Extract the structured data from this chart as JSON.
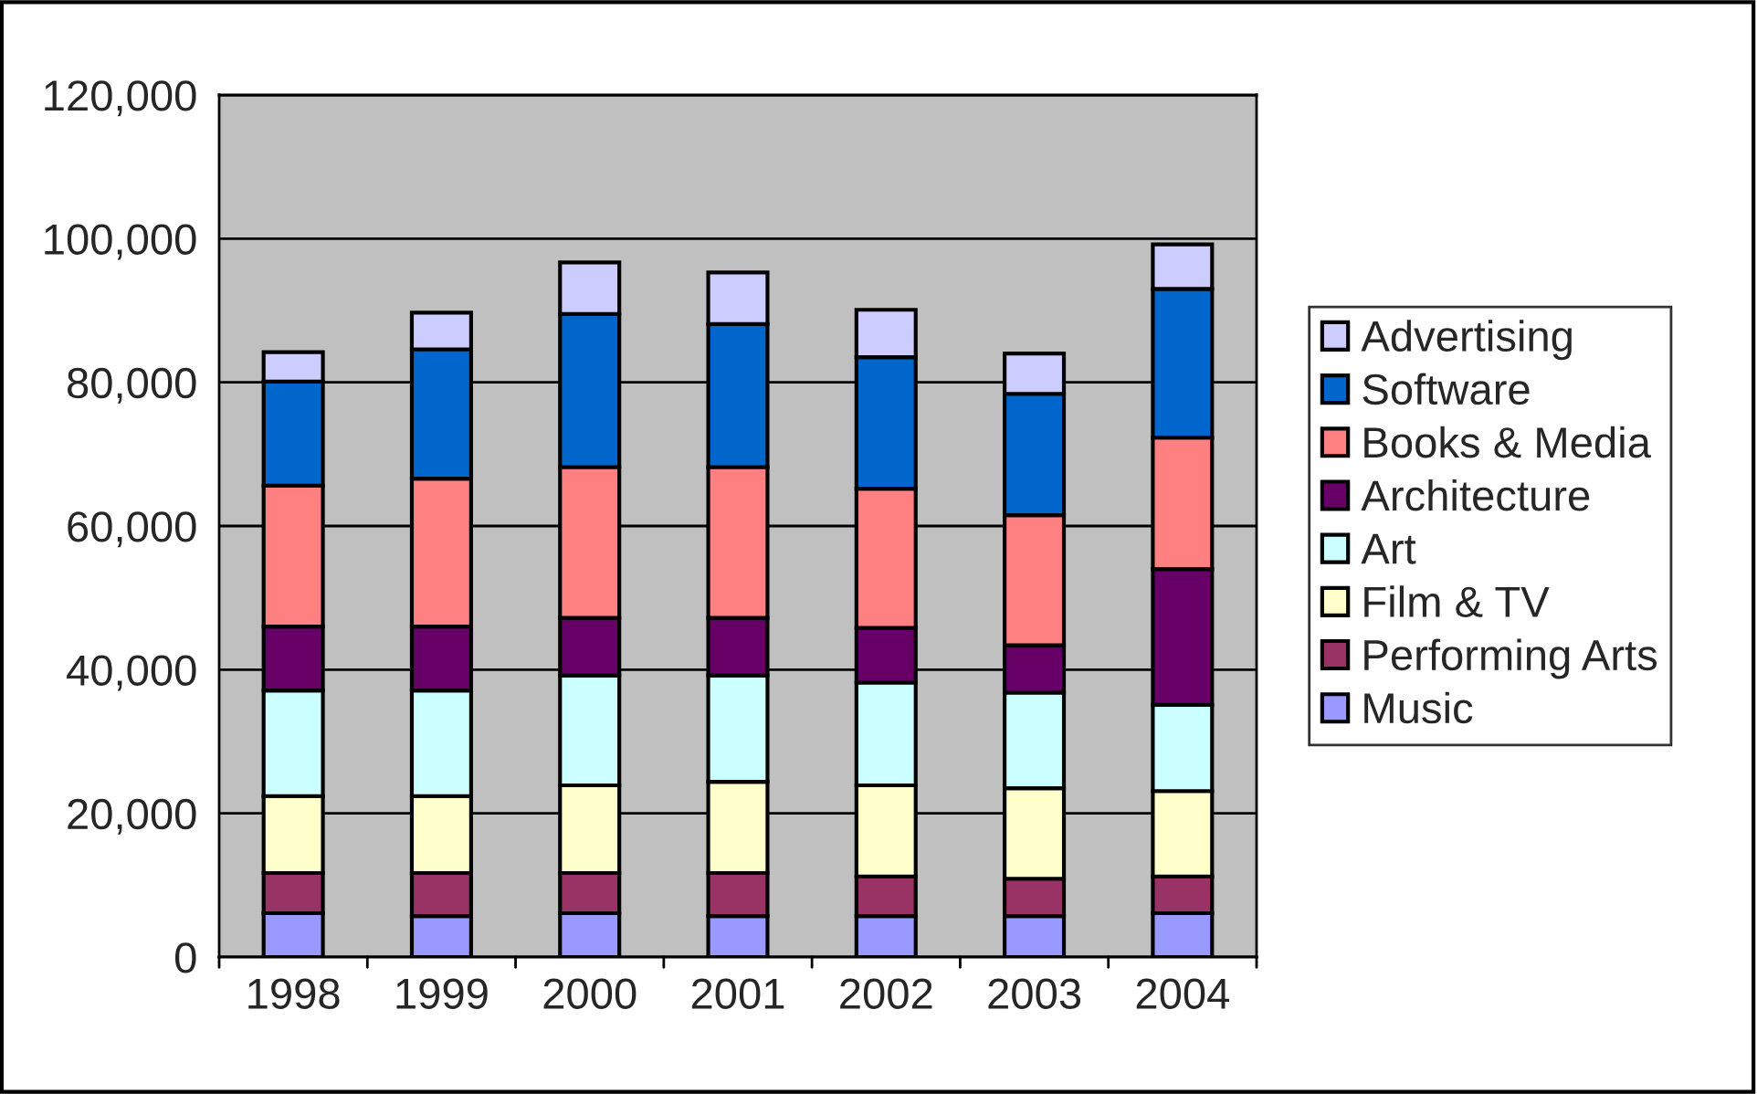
{
  "chart_data": {
    "type": "bar",
    "stacked": true,
    "categories": [
      "1998",
      "1999",
      "2000",
      "2001",
      "2002",
      "2003",
      "2004"
    ],
    "series": [
      {
        "name": "Music",
        "color": "#9999ff",
        "values": [
          6100,
          5700,
          6100,
          5700,
          5700,
          5700,
          6100
        ]
      },
      {
        "name": "Performing Arts",
        "color": "#993366",
        "values": [
          5600,
          6000,
          5600,
          6000,
          5500,
          5200,
          5100
        ]
      },
      {
        "name": "Film & TV",
        "color": "#ffffcc",
        "values": [
          10700,
          10700,
          12200,
          12700,
          12700,
          12600,
          11900
        ]
      },
      {
        "name": "Art",
        "color": "#ccffff",
        "values": [
          14700,
          14700,
          15300,
          14800,
          14300,
          13300,
          12000
        ]
      },
      {
        "name": "Architecture",
        "color": "#660066",
        "values": [
          8900,
          8900,
          8000,
          8000,
          7600,
          6600,
          18900
        ]
      },
      {
        "name": "Books & Media",
        "color": "#ff8080",
        "values": [
          19600,
          20600,
          21000,
          21000,
          19400,
          18100,
          18300
        ]
      },
      {
        "name": "Software",
        "color": "#0066cc",
        "values": [
          14500,
          18000,
          21300,
          19900,
          18300,
          16900,
          20700
        ]
      },
      {
        "name": "Advertising",
        "color": "#ccccff",
        "values": [
          4100,
          5100,
          7200,
          7200,
          6600,
          5600,
          6200
        ]
      }
    ],
    "ylim": [
      0,
      120000
    ],
    "yticks": [
      {
        "value": 0,
        "label": "0"
      },
      {
        "value": 20000,
        "label": "20,000"
      },
      {
        "value": 40000,
        "label": "40,000"
      },
      {
        "value": 60000,
        "label": "60,000"
      },
      {
        "value": 80000,
        "label": "80,000"
      },
      {
        "value": 100000,
        "label": "100,000"
      },
      {
        "value": 120000,
        "label": "120,000"
      }
    ],
    "grid": "y",
    "legend": "right"
  }
}
